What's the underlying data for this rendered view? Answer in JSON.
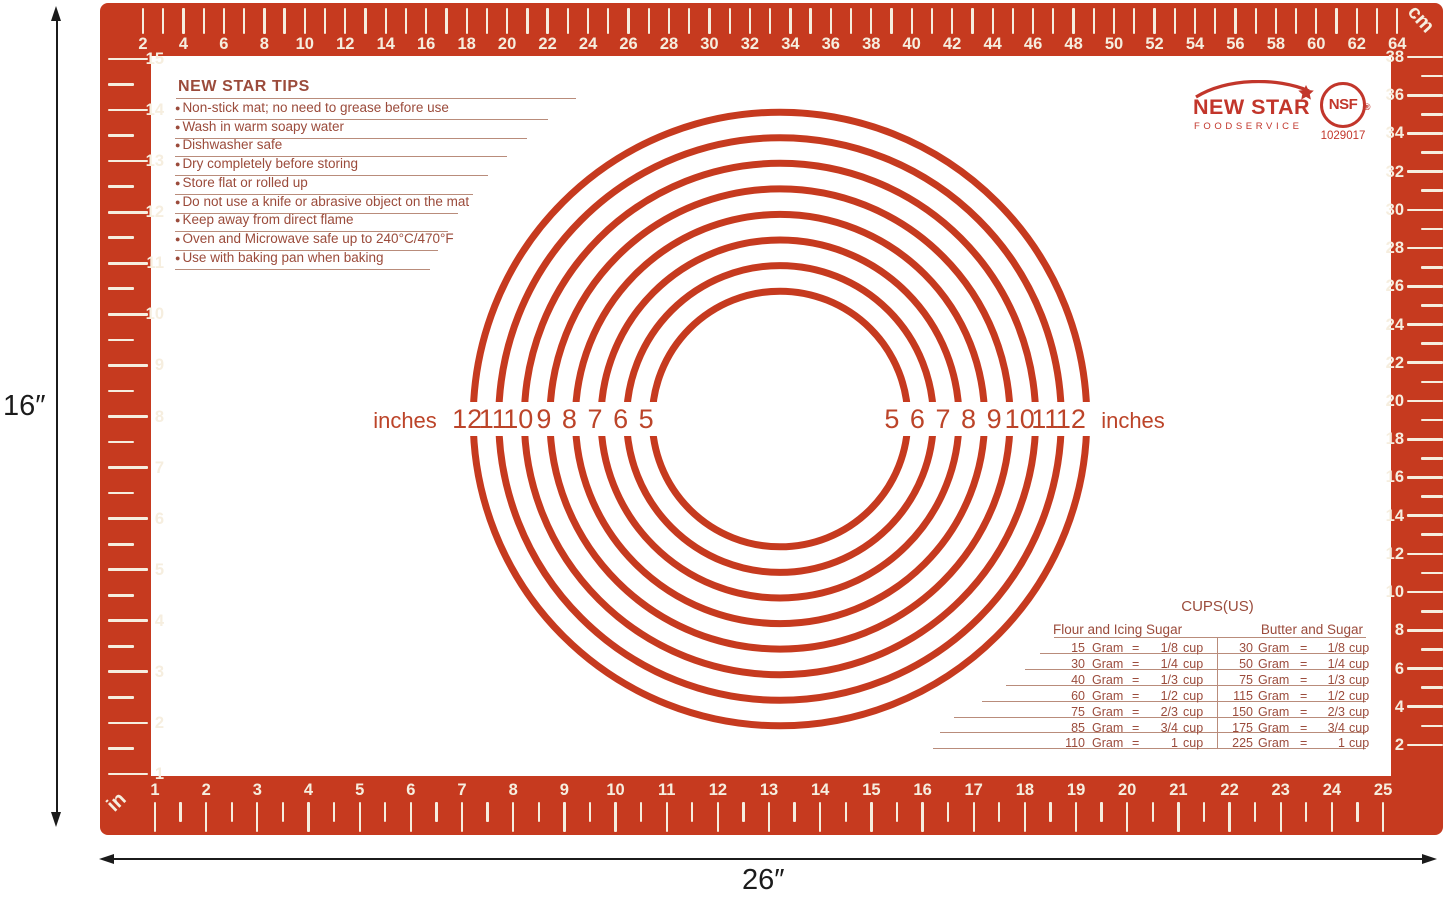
{
  "mat": {
    "tips": {
      "title": "NEW STAR TIPS",
      "items": [
        "Non-stick mat; no need to grease before use",
        "Wash in warm soapy water",
        "Dishwasher safe",
        "Dry completely before storing",
        "Store flat or rolled up",
        "Do not use a knife or abrasive object on the mat",
        "Keep away from direct flame",
        "Oven and Microwave safe up to 240°C/470°F",
        "Use with baking pan when baking"
      ]
    },
    "brand": {
      "name": "NEW STAR",
      "subtitle": "FOODSERVICE",
      "cert": "NSF",
      "cert_reg": "®",
      "cert_number": "1029017"
    },
    "circles": {
      "diameters_inches": [
        5,
        6,
        7,
        8,
        9,
        10,
        11,
        12
      ],
      "left_labels": [
        "12",
        "11",
        "10",
        "9",
        "8",
        "7",
        "6",
        "5"
      ],
      "right_labels": [
        "5",
        "6",
        "7",
        "8",
        "9",
        "10",
        "11",
        "12"
      ],
      "unit_left": "inches",
      "unit_right": "inches"
    },
    "cups_table": {
      "title": "CUPS(US)",
      "groups": [
        {
          "header": "Flour and Icing Sugar",
          "rows": [
            [
              "15",
              "Gram",
              "=",
              "1/8",
              "cup"
            ],
            [
              "30",
              "Gram",
              "=",
              "1/4",
              "cup"
            ],
            [
              "40",
              "Gram",
              "=",
              "1/3",
              "cup"
            ],
            [
              "60",
              "Gram",
              "=",
              "1/2",
              "cup"
            ],
            [
              "75",
              "Gram",
              "=",
              "2/3",
              "cup"
            ],
            [
              "85",
              "Gram",
              "=",
              "3/4",
              "cup"
            ],
            [
              "110",
              "Gram",
              "=",
              "1",
              "cup"
            ]
          ]
        },
        {
          "header": "Butter and Sugar",
          "rows": [
            [
              "30",
              "Gram",
              "=",
              "1/8",
              "cup"
            ],
            [
              "50",
              "Gram",
              "=",
              "1/4",
              "cup"
            ],
            [
              "75",
              "Gram",
              "=",
              "1/3",
              "cup"
            ],
            [
              "115",
              "Gram",
              "=",
              "1/2",
              "cup"
            ],
            [
              "150",
              "Gram",
              "=",
              "2/3",
              "cup"
            ],
            [
              "175",
              "Gram",
              "=",
              "3/4",
              "cup"
            ],
            [
              "225",
              "Gram",
              "=",
              "1",
              "cup"
            ]
          ]
        }
      ]
    },
    "rulers": {
      "top_cm": {
        "unit": "cm",
        "from": 2,
        "to": 64,
        "label_every": 2
      },
      "right_cm": {
        "unit": "cm",
        "from": 2,
        "to": 38,
        "label_every": 2
      },
      "left_in": {
        "unit": "in",
        "from": 1,
        "to": 15,
        "label_every": 1
      },
      "bottom_in": {
        "unit": "in",
        "from": 1,
        "to": 25,
        "label_every": 1
      },
      "cm_unit_label": "cm",
      "in_unit_label": "in"
    }
  },
  "dimensions": {
    "height_label": "16″",
    "width_label": "26″"
  },
  "colors": {
    "mat_red": "#C63A1F",
    "tick_cream": "#F6EEDF",
    "text_brown": "#9B4B3B",
    "circle_text_red": "#BC4429",
    "logo_red": "#C2362B",
    "annotation_black": "#1B1B1B"
  }
}
